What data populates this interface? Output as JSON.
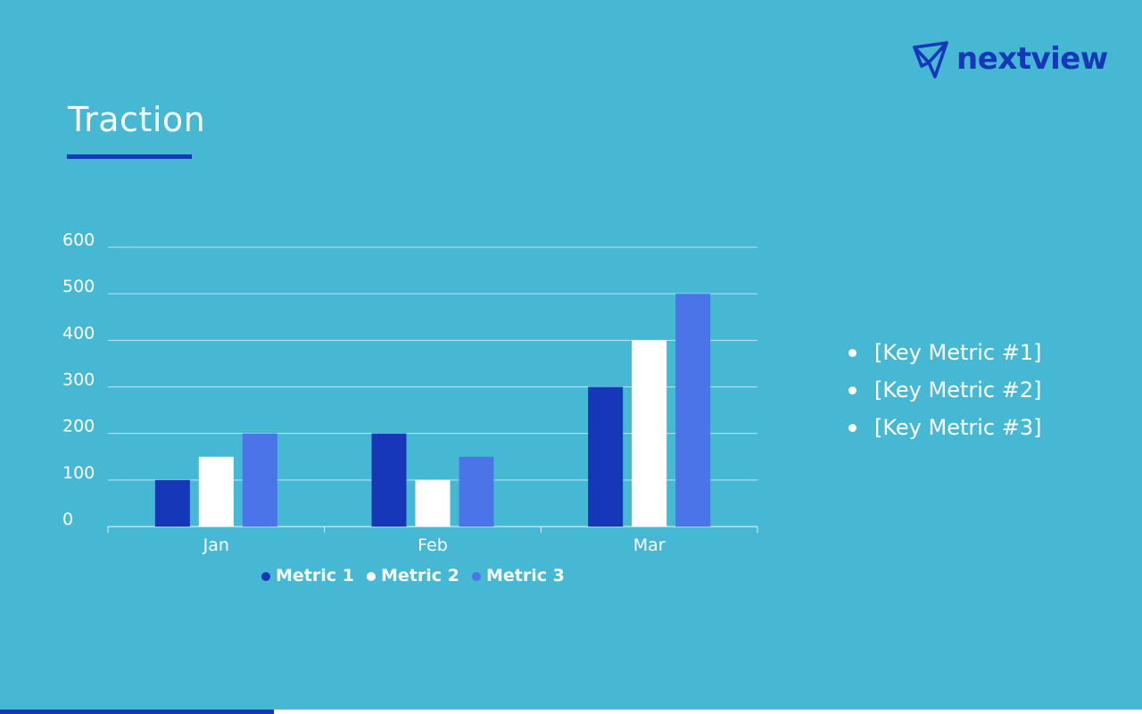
{
  "slide": {
    "title": "Traction",
    "logo_text": "nextview",
    "logo_icon": "paper-plane-icon",
    "bullets": [
      "[Key Metric #1]",
      "[Key Metric #2]",
      "[Key Metric #3]"
    ],
    "progress_fraction": 0.24
  },
  "colors": {
    "background": "#46b8d3",
    "accent": "#1637b8",
    "metric1": "#1637b8",
    "metric2": "#ffffff",
    "metric3": "#4a74e8"
  },
  "chart_data": {
    "type": "bar",
    "categories": [
      "Jan",
      "Feb",
      "Mar"
    ],
    "series": [
      {
        "name": "Metric 1",
        "values": [
          100,
          200,
          300
        ]
      },
      {
        "name": "Metric 2",
        "values": [
          150,
          100,
          400
        ]
      },
      {
        "name": "Metric 3",
        "values": [
          200,
          150,
          500
        ]
      }
    ],
    "yticks": [
      "0",
      "100",
      "200",
      "300",
      "400",
      "500",
      "600"
    ],
    "ylim": [
      0,
      600
    ],
    "grid": true,
    "legend_position": "bottom"
  }
}
